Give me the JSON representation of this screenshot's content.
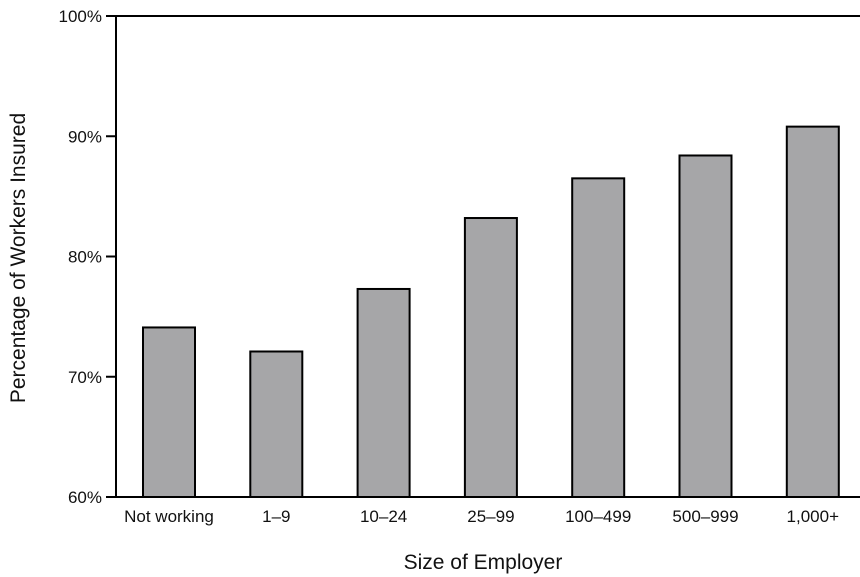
{
  "chart_data": {
    "type": "bar",
    "categories": [
      "Not working",
      "1–9",
      "10–24",
      "25–99",
      "100–499",
      "500–999",
      "1,000+"
    ],
    "values": [
      74.1,
      72.1,
      77.3,
      83.2,
      86.5,
      88.4,
      90.8
    ],
    "xlabel": "Size of Employer",
    "ylabel": "Percentage of Workers Insured",
    "ylim": [
      60,
      100
    ],
    "yticks": [
      60,
      70,
      80,
      90,
      100
    ],
    "ytick_labels": [
      "60%",
      "70%",
      "80%",
      "90%",
      "100%"
    ],
    "grid": false,
    "bar_color": "#a6a6a8"
  }
}
